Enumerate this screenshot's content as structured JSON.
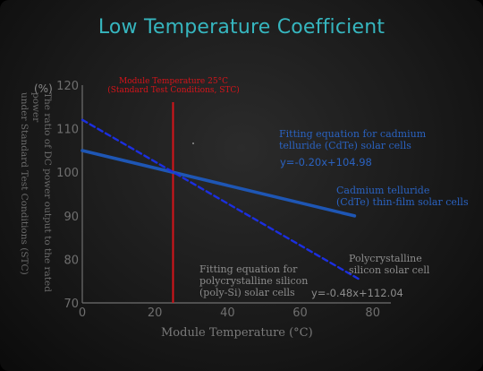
{
  "chart_data": {
    "type": "line",
    "title": "Low Temperature Coefficient",
    "xlabel": "Module Temperature (°C)",
    "ylabel": "The ratio of DC power output to the rated power\nunder Standard Test Conditions (STC)",
    "yunit": "(%)",
    "xlim": [
      0,
      85
    ],
    "ylim": [
      70,
      120
    ],
    "xticks": [
      0,
      20,
      40,
      60,
      80
    ],
    "yticks": [
      70,
      80,
      90,
      100,
      110,
      120
    ],
    "grid": false,
    "series": [
      {
        "name": "Cadmium telluride (CdTe) thin-film solar cells",
        "style": "solid",
        "color": "#1e56b4",
        "x": [
          0,
          75
        ],
        "y": [
          104.98,
          89.98
        ],
        "fit_label": "Fitting equation for cadmium\ntelluride (CdTe) solar cells",
        "equation": "y=-0.20x+104.98"
      },
      {
        "name": "Polycrystalline silicon solar cell",
        "style": "dashed",
        "color": "#1b2fe0",
        "x": [
          0,
          76
        ],
        "y": [
          112.04,
          75.56
        ],
        "fit_label": "Fitting equation for\npolycrystalline silicon\n(poly-Si) solar cells",
        "equation": "y=-0.48x+112.04"
      }
    ],
    "reference_line": {
      "x": 25,
      "color": "#d6141a",
      "label": "Module Temperature 25°C\n(Standard Test Conditions, STC)"
    }
  },
  "labels": {
    "cdte_name": "Cadmium telluride\n(CdTe) thin-film solar cells",
    "poly_name": "Polycrystalline\nsilicon solar cell"
  }
}
